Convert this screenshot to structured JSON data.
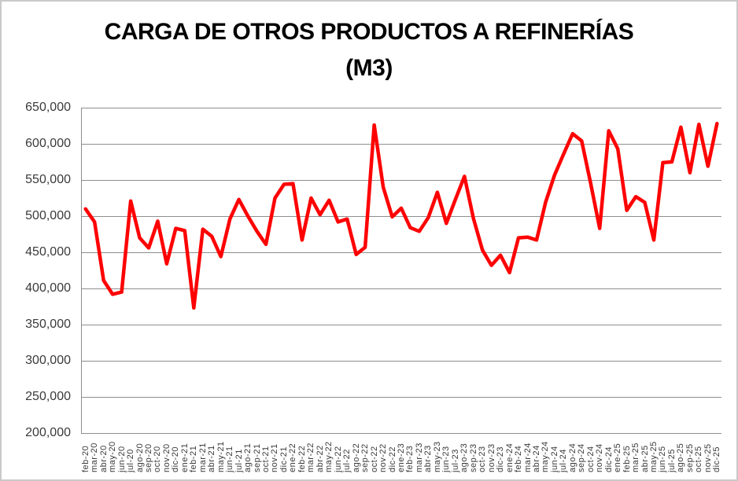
{
  "title": {
    "line1": "CARGA DE OTROS PRODUCTOS A REFINERÍAS",
    "line2": "(M3)"
  },
  "colors": {
    "line": "#FF0000",
    "gridline": "#8e8e8e",
    "axis_text": "#3a3a3a",
    "title_text": "#000000",
    "frame_border": "#c9c9c9",
    "background": "#ffffff"
  },
  "chart_data": {
    "type": "line",
    "title": "CARGA DE OTROS PRODUCTOS A REFINERÍAS (M3)",
    "xlabel": "",
    "ylabel": "",
    "ylim": [
      200000,
      650000
    ],
    "y_tick_step": 50000,
    "y_tick_labels": [
      "650,000",
      "600,000",
      "550,000",
      "500,000",
      "450,000",
      "400,000",
      "350,000",
      "300,000",
      "250,000",
      "200,000"
    ],
    "grid": true,
    "legend": false,
    "line_color": "#FF0000",
    "categories": [
      "feb-20",
      "mar-20",
      "abr-20",
      "may-20",
      "jun-20",
      "jul-20",
      "ago-20",
      "sep-20",
      "oct-20",
      "nov-20",
      "dic-20",
      "ene-21",
      "feb-21",
      "mar-21",
      "abr-21",
      "may-21",
      "jun-21",
      "jul-21",
      "ago-21",
      "sep-21",
      "oct-21",
      "nov-21",
      "dic-21",
      "ene-22",
      "feb-22",
      "mar-22",
      "abr-22",
      "may-22",
      "jun-22",
      "jul-22",
      "ago-22",
      "sep-22",
      "oct-22",
      "nov-22",
      "dic-22",
      "ene-23",
      "feb-23",
      "mar-23",
      "abr-23",
      "may-23",
      "jun-23",
      "jul-23",
      "ago-23",
      "sep-23",
      "oct-23",
      "nov-23",
      "dic-23",
      "ene-24",
      "feb-24",
      "mar-24",
      "abr-24",
      "may-24",
      "jun-24",
      "jul-24",
      "ago-24",
      "sep-24",
      "oct-24",
      "nov-24",
      "dic-24",
      "ene-25",
      "feb-25",
      "mar-25",
      "abr-25",
      "may-25",
      "jun-25",
      "jul-25",
      "ago-25",
      "sep-25",
      "oct-25",
      "nov-25",
      "dic-25"
    ],
    "values": [
      510000,
      492000,
      411000,
      392000,
      395000,
      521000,
      470000,
      456000,
      493000,
      434000,
      483000,
      480000,
      373000,
      482000,
      472000,
      444000,
      496000,
      523000,
      500000,
      479000,
      461000,
      525000,
      544000,
      545000,
      467000,
      525000,
      502000,
      522000,
      492000,
      496000,
      447000,
      457000,
      626000,
      540000,
      499000,
      511000,
      484000,
      479000,
      498000,
      533000,
      490000,
      523000,
      555000,
      497000,
      453000,
      432000,
      446000,
      422000,
      470000,
      471000,
      467000,
      519000,
      557000,
      586000,
      614000,
      604000,
      545000,
      483000,
      618000,
      593000,
      508000,
      527000,
      519000,
      467000,
      574000,
      575000,
      623000,
      560000,
      627000,
      569000,
      628000
    ]
  }
}
